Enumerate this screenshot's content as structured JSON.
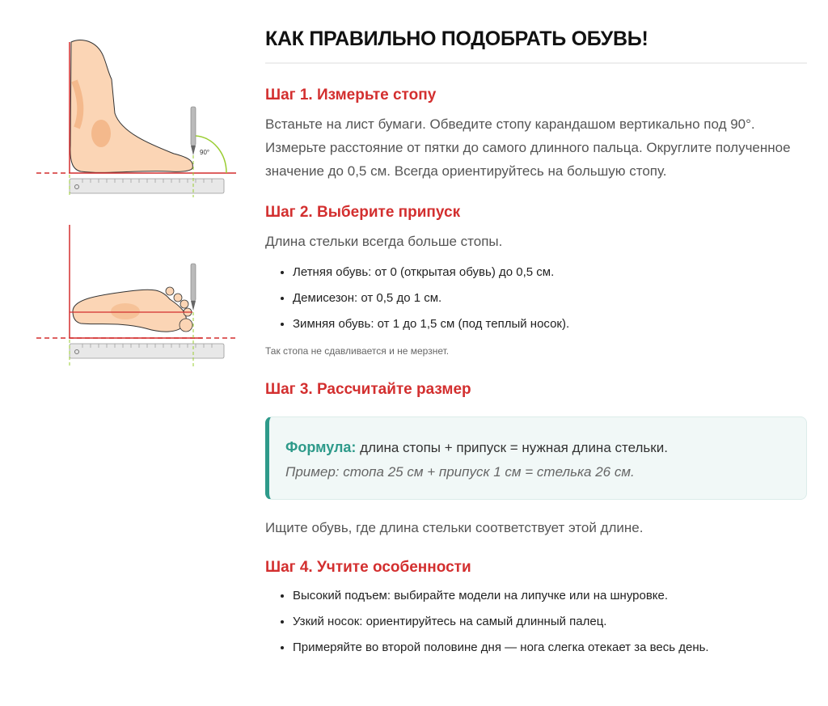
{
  "illustration": {
    "angle_label": "90°"
  },
  "title": "КАК ПРАВИЛЬНО ПОДОБРАТЬ ОБУВЬ!",
  "step1": {
    "heading": "Шаг 1. Измерьте стопу",
    "text": "Встаньте на лист бумаги. Обведите стопу карандашом вертикально под 90°. Измерьте расстояние от пятки до самого длинного пальца. Округлите полученное значение до 0,5 см. Всегда ориентируйтесь на большую стопу."
  },
  "step2": {
    "heading": "Шаг 2. Выберите припуск",
    "text": "Длина стельки всегда больше стопы.",
    "items": [
      "Летняя обувь: от 0 (открытая обувь) до 0,5 см.",
      "Демисезон: от 0,5 до 1 см.",
      "Зимняя обувь: от 1 до 1,5 см (под теплый носок)."
    ],
    "note": "Так стопа не сдавливается и не мерзнет."
  },
  "step3": {
    "heading": "Шаг 3. Рассчитайте размер",
    "formula_label": "Формула:",
    "formula_text": " длина стопы + припуск = нужная длина стельки.",
    "example": "Пример: стопа 25 см + припуск 1 см = стелька 26 см.",
    "after": "Ищите обувь, где длина стельки соответствует этой длине."
  },
  "step4": {
    "heading": "Шаг 4. Учтите особенности",
    "items": [
      "Высокий подъем: выбирайте модели на липучке или на шнуровке.",
      "Узкий носок: ориентируйтесь на самый длинный палец.",
      "Примеряйте во второй половине дня — нога слегка отекает за весь день."
    ]
  },
  "colors": {
    "accent_red": "#d32f2f",
    "formula_teal": "#2e9a8a"
  }
}
